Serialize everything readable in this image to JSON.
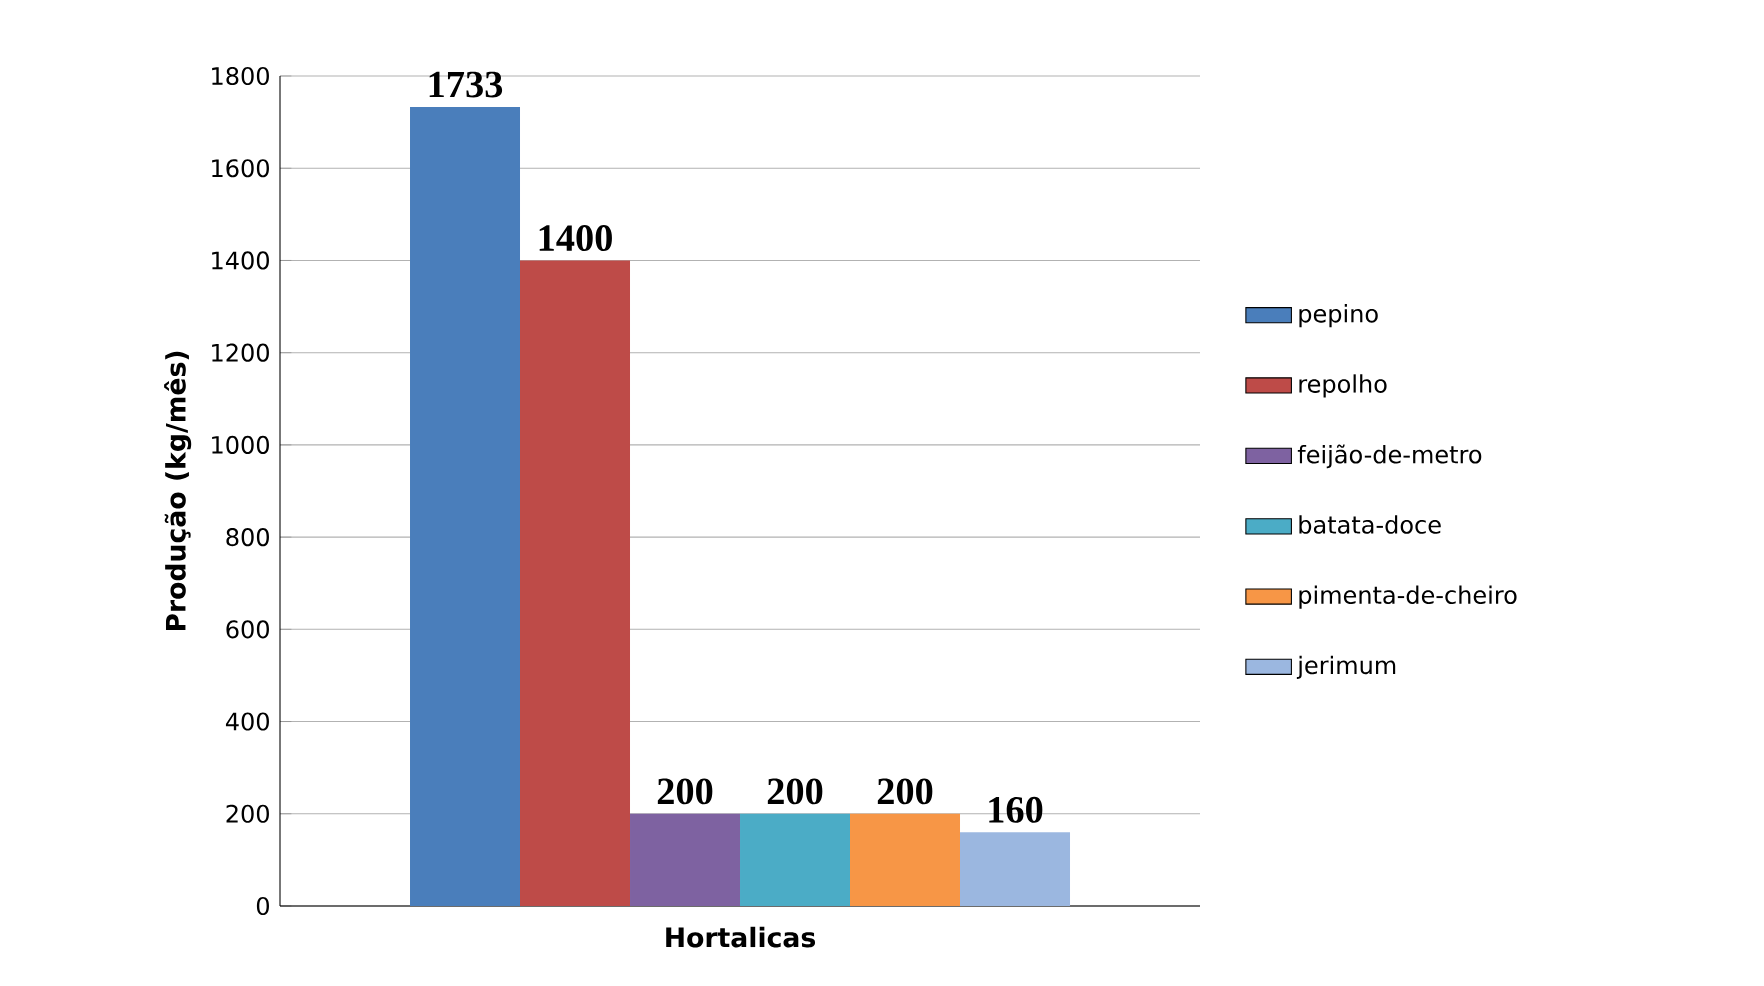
{
  "chart_data": {
    "type": "bar",
    "xlabel": "Hortalicas",
    "ylabel": "Produção  (kg/mês)",
    "categories": [
      null
    ],
    "series": [
      {
        "name": "pepino",
        "color": "#4a7ebb",
        "values": [
          1733
        ]
      },
      {
        "name": "repolho",
        "color": "#be4b48",
        "values": [
          1400
        ]
      },
      {
        "name": "feijão-de-metro",
        "color": "#7e62a1",
        "values": [
          200
        ]
      },
      {
        "name": "batata-doce",
        "color": "#4bacc6",
        "values": [
          200
        ]
      },
      {
        "name": "pimenta-de-cheiro",
        "color": "#f79646",
        "values": [
          200
        ]
      },
      {
        "name": "jerimum",
        "color": "#9bb7e0",
        "values": [
          160
        ]
      }
    ],
    "ylim": [
      0,
      1800
    ],
    "yticks": [
      0,
      200,
      400,
      600,
      800,
      1000,
      1200,
      1400,
      1600,
      1800
    ],
    "grid": "y",
    "legend": "right",
    "data_labels": true
  }
}
